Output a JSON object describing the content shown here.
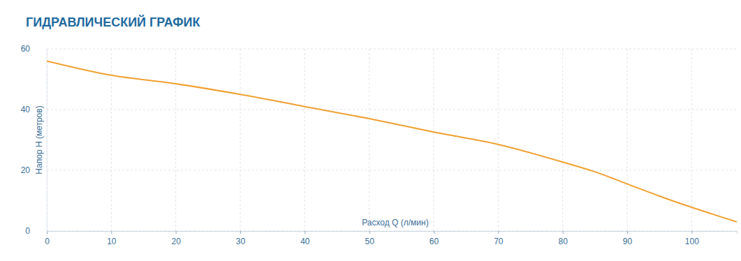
{
  "chart_data": {
    "type": "line",
    "title": "ГИДРАВЛИЧЕСКИЙ ГРАФИК",
    "x_label": "Расход Q (л/мин)",
    "y_label": "Напор H (метров)",
    "x": [
      0,
      10,
      20,
      30,
      40,
      50,
      60,
      70,
      80,
      85,
      90,
      95,
      100,
      107
    ],
    "values": [
      56,
      51.3,
      48.5,
      45,
      41,
      37,
      32.6,
      28.5,
      22.7,
      19.5,
      15.5,
      11.5,
      7.8,
      3
    ],
    "color": "#f0a030",
    "xlim": [
      0,
      107
    ],
    "ylim": [
      0,
      60
    ],
    "xticks": [
      0,
      10,
      20,
      30,
      40,
      50,
      60,
      70,
      80,
      90,
      100
    ],
    "yticks": [
      0,
      20,
      40,
      60
    ],
    "grid": true
  }
}
